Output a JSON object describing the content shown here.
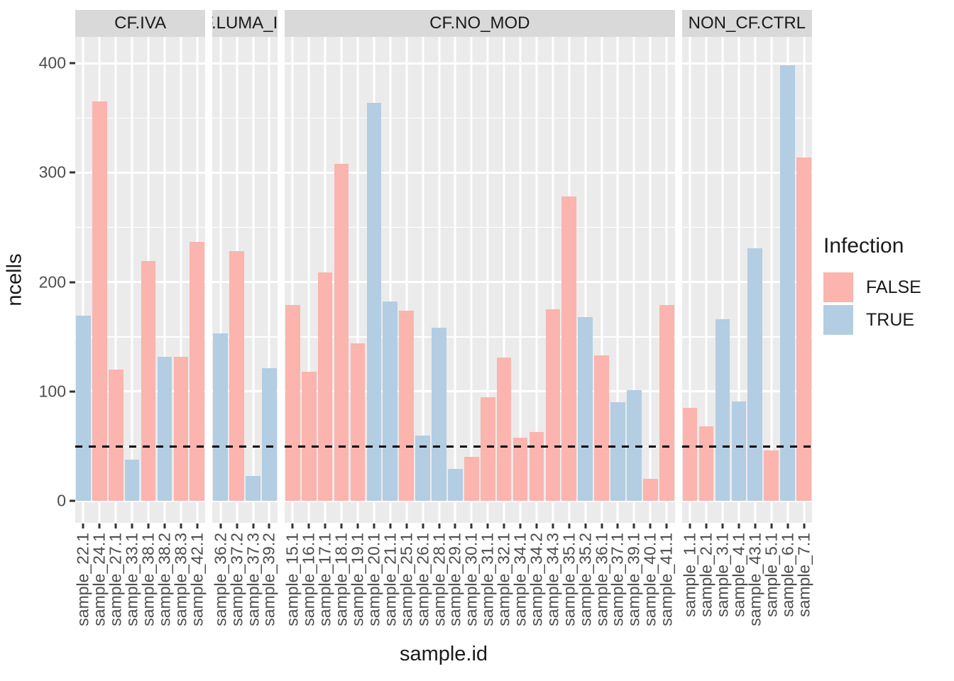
{
  "chart_data": {
    "type": "bar",
    "title": "",
    "xlabel": "sample.id",
    "ylabel": "ncells",
    "ylim": [
      -20,
      424
    ],
    "yticks": [
      0,
      100,
      200,
      300,
      400
    ],
    "yminor": [
      50,
      150,
      250,
      350
    ],
    "grid": "on",
    "panel_bg": "#ebebeb",
    "strip_bg": "#d9d9d9",
    "hline": {
      "value": 50,
      "style": "dashed",
      "color": "#000000"
    },
    "legend": {
      "title": "Infection",
      "position": "right",
      "entries": [
        {
          "label": "FALSE",
          "color": "#FBB4AE"
        },
        {
          "label": "TRUE",
          "color": "#B3CDE3"
        }
      ]
    },
    "facets": [
      {
        "label": "CF.IVA",
        "bars": [
          {
            "x": "sample_22.1",
            "y": 169,
            "infection": "TRUE"
          },
          {
            "x": "sample_24.1",
            "y": 365,
            "infection": "FALSE"
          },
          {
            "x": "sample_27.1",
            "y": 120,
            "infection": "FALSE"
          },
          {
            "x": "sample_33.1",
            "y": 38,
            "infection": "TRUE"
          },
          {
            "x": "sample_38.1",
            "y": 219,
            "infection": "FALSE"
          },
          {
            "x": "sample_38.2",
            "y": 132,
            "infection": "TRUE"
          },
          {
            "x": "sample_38.3",
            "y": 132,
            "infection": "FALSE"
          },
          {
            "x": "sample_42.1",
            "y": 237,
            "infection": "FALSE"
          }
        ]
      },
      {
        "label": "CF.LUMA_IVA",
        "bars": [
          {
            "x": "sample_36.2",
            "y": 153,
            "infection": "TRUE"
          },
          {
            "x": "sample_37.2",
            "y": 228,
            "infection": "FALSE"
          },
          {
            "x": "sample_37.3",
            "y": 23,
            "infection": "TRUE"
          },
          {
            "x": "sample_39.2",
            "y": 121,
            "infection": "TRUE"
          }
        ]
      },
      {
        "label": "CF.NO_MOD",
        "bars": [
          {
            "x": "sample_15.1",
            "y": 179,
            "infection": "FALSE"
          },
          {
            "x": "sample_16.1",
            "y": 118,
            "infection": "FALSE"
          },
          {
            "x": "sample_17.1",
            "y": 209,
            "infection": "FALSE"
          },
          {
            "x": "sample_18.1",
            "y": 308,
            "infection": "FALSE"
          },
          {
            "x": "sample_19.1",
            "y": 144,
            "infection": "FALSE"
          },
          {
            "x": "sample_20.1",
            "y": 364,
            "infection": "TRUE"
          },
          {
            "x": "sample_21.1",
            "y": 182,
            "infection": "TRUE"
          },
          {
            "x": "sample_25.1",
            "y": 174,
            "infection": "FALSE"
          },
          {
            "x": "sample_26.1",
            "y": 60,
            "infection": "TRUE"
          },
          {
            "x": "sample_28.1",
            "y": 158,
            "infection": "TRUE"
          },
          {
            "x": "sample_29.1",
            "y": 29,
            "infection": "TRUE"
          },
          {
            "x": "sample_30.1",
            "y": 40,
            "infection": "FALSE"
          },
          {
            "x": "sample_31.1",
            "y": 95,
            "infection": "FALSE"
          },
          {
            "x": "sample_32.1",
            "y": 131,
            "infection": "FALSE"
          },
          {
            "x": "sample_34.1",
            "y": 58,
            "infection": "FALSE"
          },
          {
            "x": "sample_34.2",
            "y": 63,
            "infection": "FALSE"
          },
          {
            "x": "sample_34.3",
            "y": 175,
            "infection": "FALSE"
          },
          {
            "x": "sample_35.1",
            "y": 278,
            "infection": "FALSE"
          },
          {
            "x": "sample_35.2",
            "y": 168,
            "infection": "TRUE"
          },
          {
            "x": "sample_36.1",
            "y": 133,
            "infection": "FALSE"
          },
          {
            "x": "sample_37.1",
            "y": 90,
            "infection": "TRUE"
          },
          {
            "x": "sample_39.1",
            "y": 101,
            "infection": "TRUE"
          },
          {
            "x": "sample_40.1",
            "y": 20,
            "infection": "FALSE"
          },
          {
            "x": "sample_41.1",
            "y": 179,
            "infection": "FALSE"
          }
        ]
      },
      {
        "label": "NON_CF.CTRL",
        "bars": [
          {
            "x": "sample_1.1",
            "y": 85,
            "infection": "FALSE"
          },
          {
            "x": "sample_2.1",
            "y": 68,
            "infection": "FALSE"
          },
          {
            "x": "sample_3.1",
            "y": 166,
            "infection": "TRUE"
          },
          {
            "x": "sample_4.1",
            "y": 91,
            "infection": "TRUE"
          },
          {
            "x": "sample_43.1",
            "y": 231,
            "infection": "TRUE"
          },
          {
            "x": "sample_5.1",
            "y": 46,
            "infection": "FALSE"
          },
          {
            "x": "sample_6.1",
            "y": 398,
            "infection": "TRUE"
          },
          {
            "x": "sample_7.1",
            "y": 314,
            "infection": "FALSE"
          }
        ]
      }
    ]
  }
}
